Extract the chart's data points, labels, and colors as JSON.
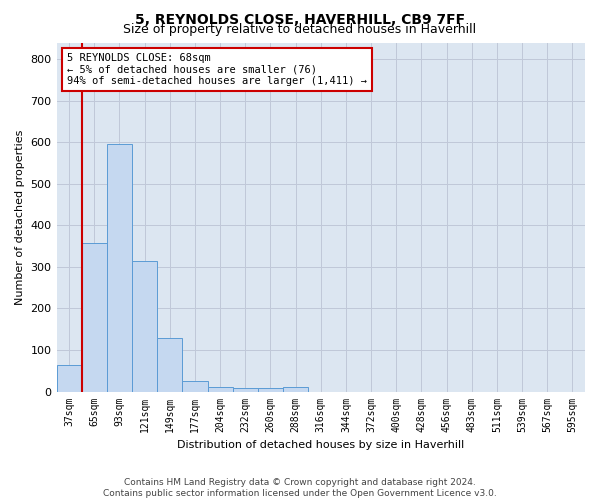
{
  "title": "5, REYNOLDS CLOSE, HAVERHILL, CB9 7FF",
  "subtitle": "Size of property relative to detached houses in Haverhill",
  "xlabel": "Distribution of detached houses by size in Haverhill",
  "ylabel": "Number of detached properties",
  "footer_line1": "Contains HM Land Registry data © Crown copyright and database right 2024.",
  "footer_line2": "Contains public sector information licensed under the Open Government Licence v3.0.",
  "categories": [
    "37sqm",
    "65sqm",
    "93sqm",
    "121sqm",
    "149sqm",
    "177sqm",
    "204sqm",
    "232sqm",
    "260sqm",
    "288sqm",
    "316sqm",
    "344sqm",
    "372sqm",
    "400sqm",
    "428sqm",
    "456sqm",
    "483sqm",
    "511sqm",
    "539sqm",
    "567sqm",
    "595sqm"
  ],
  "values": [
    65,
    357,
    595,
    315,
    128,
    25,
    10,
    9,
    9,
    10,
    0,
    0,
    0,
    0,
    0,
    0,
    0,
    0,
    0,
    0,
    0
  ],
  "bar_color": "#c5d8f0",
  "bar_edge_color": "#5b9bd5",
  "grid_color": "#c0c8d8",
  "background_color": "#dce6f1",
  "annotation_line1": "5 REYNOLDS CLOSE: 68sqm",
  "annotation_line2": "← 5% of detached houses are smaller (76)",
  "annotation_line3": "94% of semi-detached houses are larger (1,411) →",
  "annotation_box_color": "#ffffff",
  "annotation_box_edge": "#cc0000",
  "vline_color": "#cc0000",
  "ylim": [
    0,
    840
  ],
  "yticks": [
    0,
    100,
    200,
    300,
    400,
    500,
    600,
    700,
    800
  ],
  "title_fontsize": 10,
  "subtitle_fontsize": 9,
  "ylabel_fontsize": 8,
  "xlabel_fontsize": 8,
  "tick_fontsize": 7,
  "footer_fontsize": 6.5
}
